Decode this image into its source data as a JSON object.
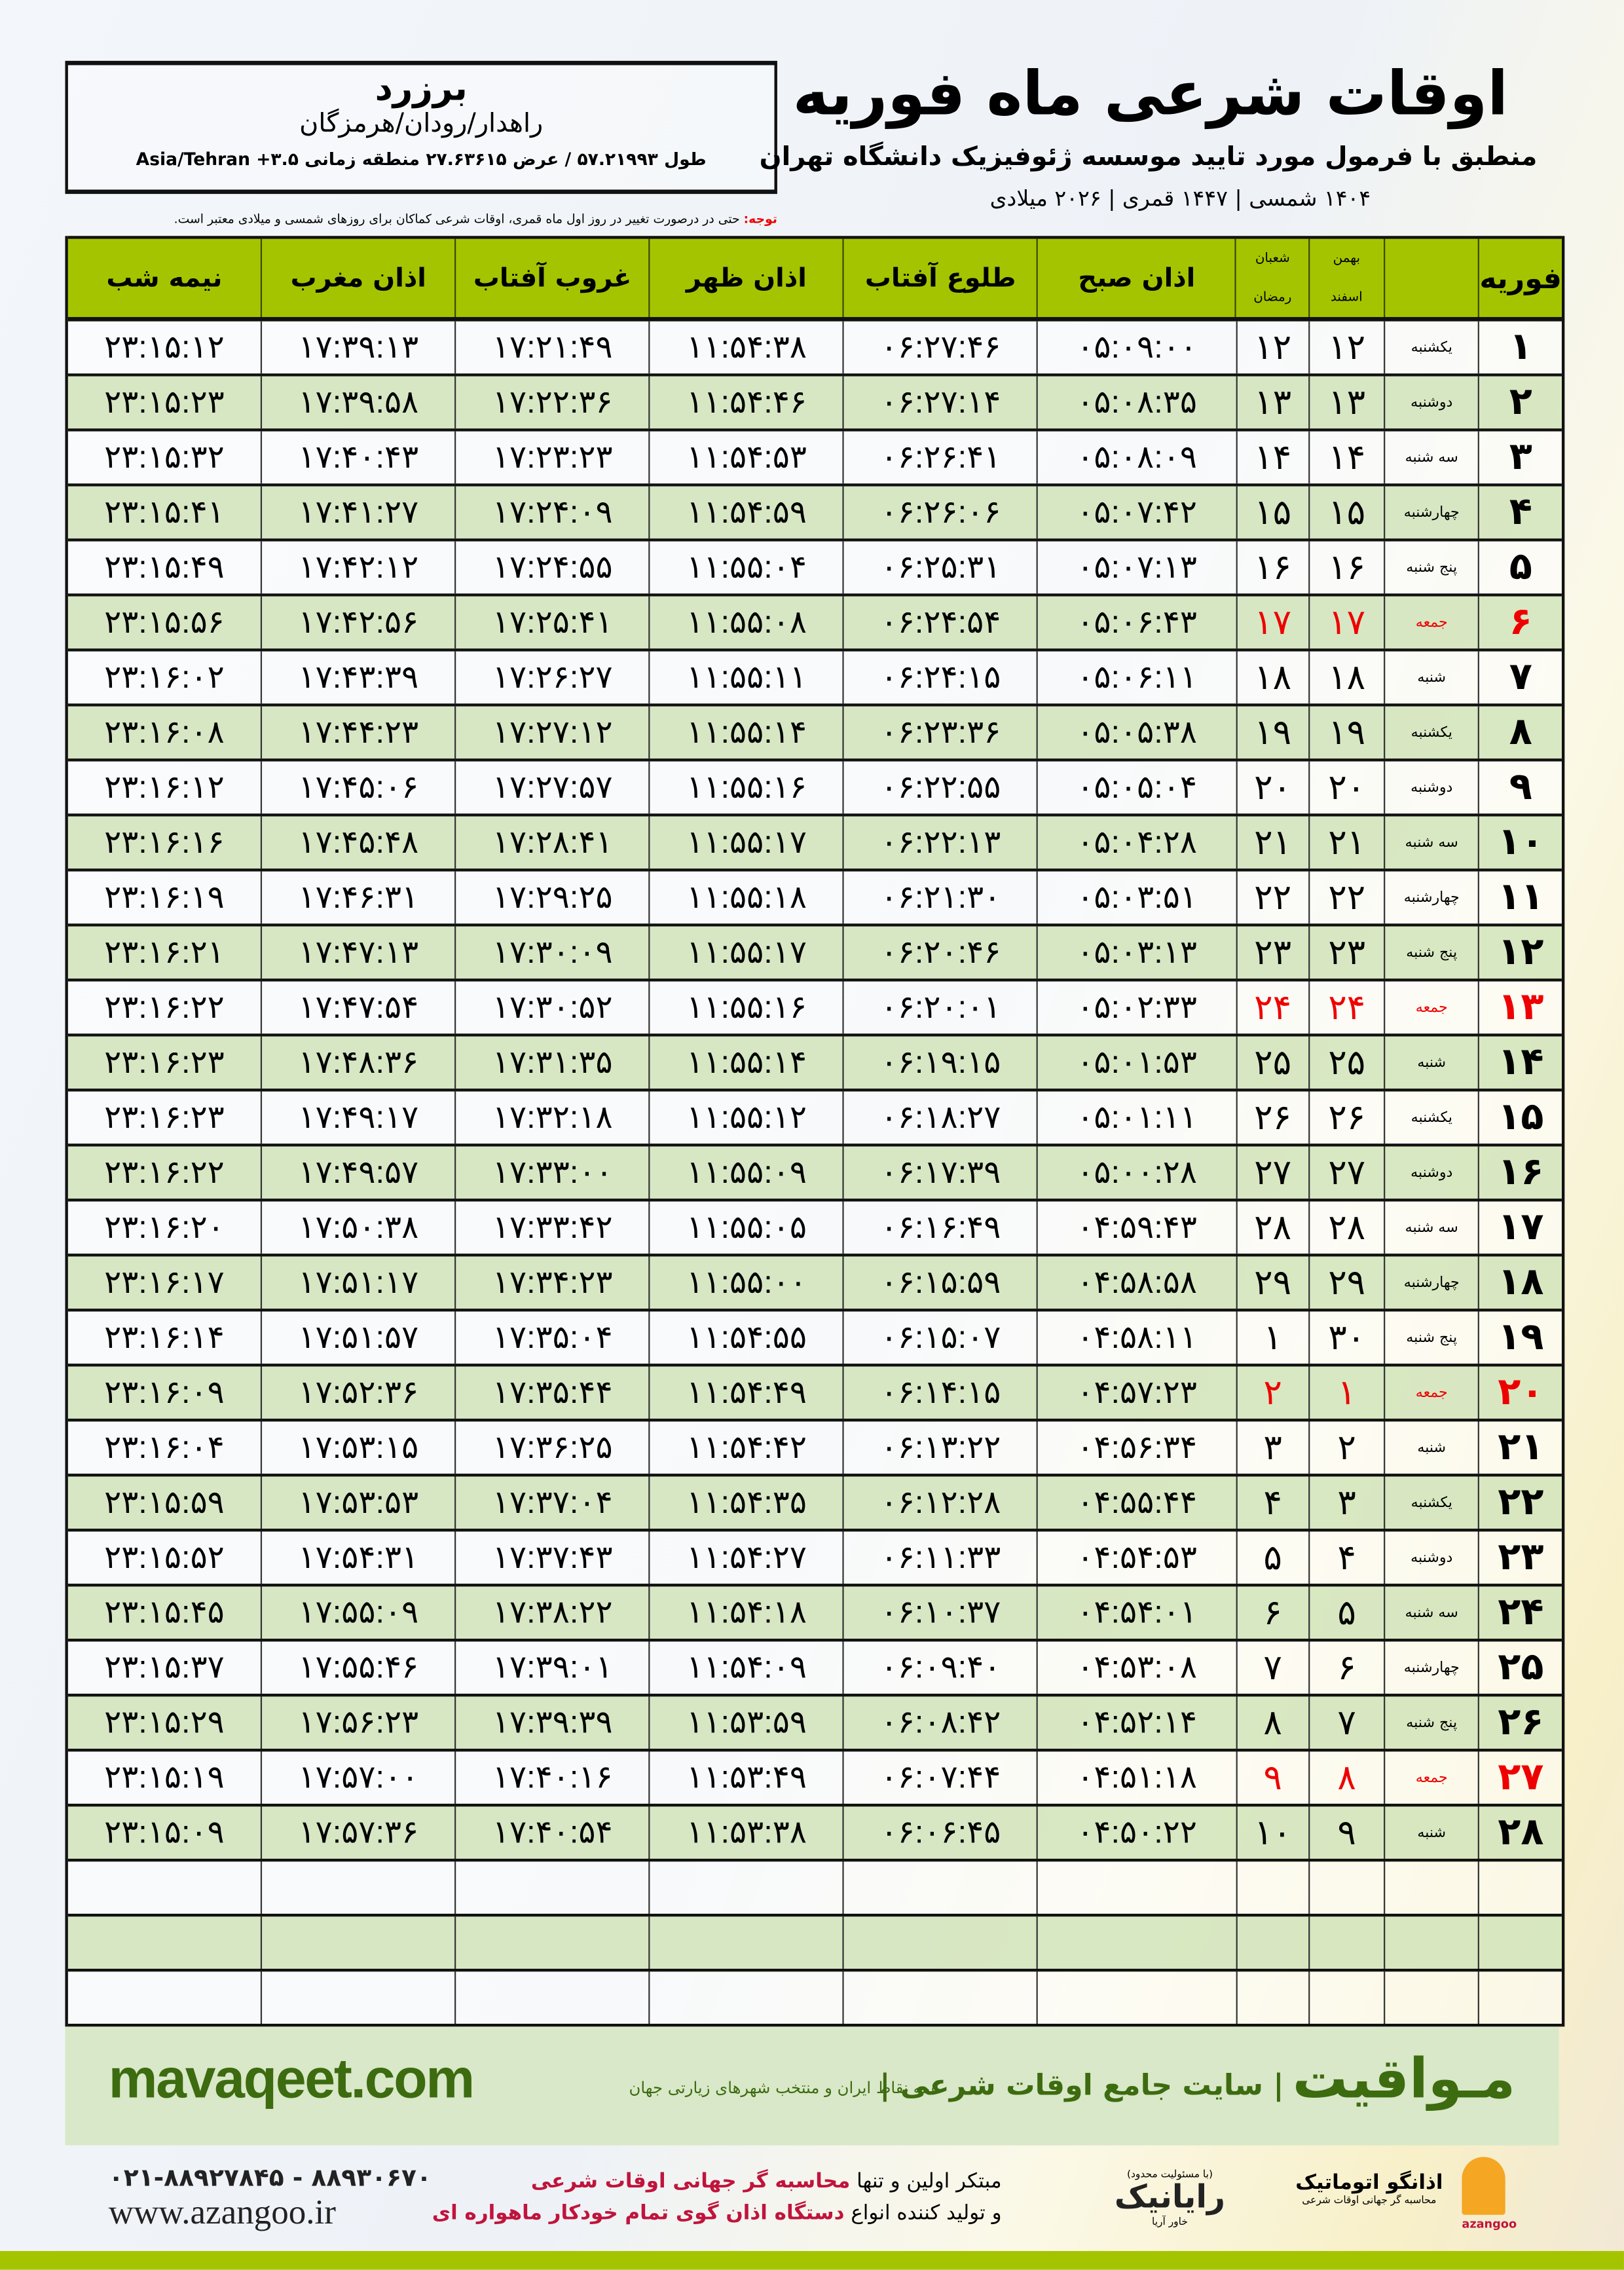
{
  "location": {
    "city": "برزرد",
    "region": "راهدار/رودان/هرمزگان",
    "coords": "طول ۵۷.۲۱۹۹۳ / عرض ۲۷.۶۳۶۱۵ منطقه زمانی ۳.۵+ Asia/Tehran"
  },
  "header": {
    "title": "اوقات شرعی ماه فوریه",
    "subtitle": "منطبق با فرمول مورد تایید موسسه ژئوفیزیک دانشگاه تهران",
    "dateline": "۱۴۰۴ شمسی | ۱۴۴۷ قمری | ۲۰۲۶ میلادی"
  },
  "note": {
    "label": "توجه:",
    "text": " حتی در درصورت تغییر در روز اول ماه قمری، اوقات شرعی کماکان برای روزهای شمسی و میلادی معتبر است."
  },
  "colors": {
    "header_green": "#a5c400",
    "row_green": "#d4e6be",
    "friday_red": "#e00000",
    "brand_green": "#3d6b10"
  },
  "table": {
    "columns": {
      "month": "فوریه",
      "sh1": "بهمن",
      "sh2": "اسفند",
      "q1": "شعبان",
      "q2": "رمضان",
      "sobh": "اذان صبح",
      "tolu": "طلوع آفتاب",
      "zohr": "اذان ظهر",
      "ghorub": "غروب آفتاب",
      "maghreb": "اذان مغرب",
      "nime": "نیمه شب"
    },
    "rows": [
      {
        "d": "۱",
        "wd": "یکشنبه",
        "s": "۱۲",
        "q": "۱۲",
        "t": [
          "۰۵:۰۹:۰۰",
          "۰۶:۲۷:۴۶",
          "۱۱:۵۴:۳۸",
          "۱۷:۲۱:۴۹",
          "۱۷:۳۹:۱۳",
          "۲۳:۱۵:۱۲"
        ]
      },
      {
        "d": "۲",
        "wd": "دوشنبه",
        "s": "۱۳",
        "q": "۱۳",
        "t": [
          "۰۵:۰۸:۳۵",
          "۰۶:۲۷:۱۴",
          "۱۱:۵۴:۴۶",
          "۱۷:۲۲:۳۶",
          "۱۷:۳۹:۵۸",
          "۲۳:۱۵:۲۳"
        ]
      },
      {
        "d": "۳",
        "wd": "سه شنبه",
        "s": "۱۴",
        "q": "۱۴",
        "t": [
          "۰۵:۰۸:۰۹",
          "۰۶:۲۶:۴۱",
          "۱۱:۵۴:۵۳",
          "۱۷:۲۳:۲۳",
          "۱۷:۴۰:۴۳",
          "۲۳:۱۵:۳۲"
        ]
      },
      {
        "d": "۴",
        "wd": "چهارشنبه",
        "s": "۱۵",
        "q": "۱۵",
        "t": [
          "۰۵:۰۷:۴۲",
          "۰۶:۲۶:۰۶",
          "۱۱:۵۴:۵۹",
          "۱۷:۲۴:۰۹",
          "۱۷:۴۱:۲۷",
          "۲۳:۱۵:۴۱"
        ]
      },
      {
        "d": "۵",
        "wd": "پنج شنبه",
        "s": "۱۶",
        "q": "۱۶",
        "t": [
          "۰۵:۰۷:۱۳",
          "۰۶:۲۵:۳۱",
          "۱۱:۵۵:۰۴",
          "۱۷:۲۴:۵۵",
          "۱۷:۴۲:۱۲",
          "۲۳:۱۵:۴۹"
        ]
      },
      {
        "d": "۶",
        "wd": "جمعه",
        "s": "۱۷",
        "q": "۱۷",
        "friday": true,
        "t": [
          "۰۵:۰۶:۴۳",
          "۰۶:۲۴:۵۴",
          "۱۱:۵۵:۰۸",
          "۱۷:۲۵:۴۱",
          "۱۷:۴۲:۵۶",
          "۲۳:۱۵:۵۶"
        ]
      },
      {
        "d": "۷",
        "wd": "شنبه",
        "s": "۱۸",
        "q": "۱۸",
        "t": [
          "۰۵:۰۶:۱۱",
          "۰۶:۲۴:۱۵",
          "۱۱:۵۵:۱۱",
          "۱۷:۲۶:۲۷",
          "۱۷:۴۳:۳۹",
          "۲۳:۱۶:۰۲"
        ]
      },
      {
        "d": "۸",
        "wd": "یکشنبه",
        "s": "۱۹",
        "q": "۱۹",
        "t": [
          "۰۵:۰۵:۳۸",
          "۰۶:۲۳:۳۶",
          "۱۱:۵۵:۱۴",
          "۱۷:۲۷:۱۲",
          "۱۷:۴۴:۲۳",
          "۲۳:۱۶:۰۸"
        ]
      },
      {
        "d": "۹",
        "wd": "دوشنبه",
        "s": "۲۰",
        "q": "۲۰",
        "t": [
          "۰۵:۰۵:۰۴",
          "۰۶:۲۲:۵۵",
          "۱۱:۵۵:۱۶",
          "۱۷:۲۷:۵۷",
          "۱۷:۴۵:۰۶",
          "۲۳:۱۶:۱۲"
        ]
      },
      {
        "d": "۱۰",
        "wd": "سه شنبه",
        "s": "۲۱",
        "q": "۲۱",
        "t": [
          "۰۵:۰۴:۲۸",
          "۰۶:۲۲:۱۳",
          "۱۱:۵۵:۱۷",
          "۱۷:۲۸:۴۱",
          "۱۷:۴۵:۴۸",
          "۲۳:۱۶:۱۶"
        ]
      },
      {
        "d": "۱۱",
        "wd": "چهارشنبه",
        "s": "۲۲",
        "q": "۲۲",
        "t": [
          "۰۵:۰۳:۵۱",
          "۰۶:۲۱:۳۰",
          "۱۱:۵۵:۱۸",
          "۱۷:۲۹:۲۵",
          "۱۷:۴۶:۳۱",
          "۲۳:۱۶:۱۹"
        ]
      },
      {
        "d": "۱۲",
        "wd": "پنج شنبه",
        "s": "۲۳",
        "q": "۲۳",
        "t": [
          "۰۵:۰۳:۱۳",
          "۰۶:۲۰:۴۶",
          "۱۱:۵۵:۱۷",
          "۱۷:۳۰:۰۹",
          "۱۷:۴۷:۱۳",
          "۲۳:۱۶:۲۱"
        ]
      },
      {
        "d": "۱۳",
        "wd": "جمعه",
        "s": "۲۴",
        "q": "۲۴",
        "friday": true,
        "t": [
          "۰۵:۰۲:۳۳",
          "۰۶:۲۰:۰۱",
          "۱۱:۵۵:۱۶",
          "۱۷:۳۰:۵۲",
          "۱۷:۴۷:۵۴",
          "۲۳:۱۶:۲۲"
        ]
      },
      {
        "d": "۱۴",
        "wd": "شنبه",
        "s": "۲۵",
        "q": "۲۵",
        "t": [
          "۰۵:۰۱:۵۳",
          "۰۶:۱۹:۱۵",
          "۱۱:۵۵:۱۴",
          "۱۷:۳۱:۳۵",
          "۱۷:۴۸:۳۶",
          "۲۳:۱۶:۲۳"
        ]
      },
      {
        "d": "۱۵",
        "wd": "یکشنبه",
        "s": "۲۶",
        "q": "۲۶",
        "t": [
          "۰۵:۰۱:۱۱",
          "۰۶:۱۸:۲۷",
          "۱۱:۵۵:۱۲",
          "۱۷:۳۲:۱۸",
          "۱۷:۴۹:۱۷",
          "۲۳:۱۶:۲۳"
        ]
      },
      {
        "d": "۱۶",
        "wd": "دوشنبه",
        "s": "۲۷",
        "q": "۲۷",
        "t": [
          "۰۵:۰۰:۲۸",
          "۰۶:۱۷:۳۹",
          "۱۱:۵۵:۰۹",
          "۱۷:۳۳:۰۰",
          "۱۷:۴۹:۵۷",
          "۲۳:۱۶:۲۲"
        ]
      },
      {
        "d": "۱۷",
        "wd": "سه شنبه",
        "s": "۲۸",
        "q": "۲۸",
        "t": [
          "۰۴:۵۹:۴۳",
          "۰۶:۱۶:۴۹",
          "۱۱:۵۵:۰۵",
          "۱۷:۳۳:۴۲",
          "۱۷:۵۰:۳۸",
          "۲۳:۱۶:۲۰"
        ]
      },
      {
        "d": "۱۸",
        "wd": "چهارشنبه",
        "s": "۲۹",
        "q": "۲۹",
        "t": [
          "۰۴:۵۸:۵۸",
          "۰۶:۱۵:۵۹",
          "۱۱:۵۵:۰۰",
          "۱۷:۳۴:۲۳",
          "۱۷:۵۱:۱۷",
          "۲۳:۱۶:۱۷"
        ]
      },
      {
        "d": "۱۹",
        "wd": "پنج شنبه",
        "s": "۳۰",
        "q": "۱",
        "t": [
          "۰۴:۵۸:۱۱",
          "۰۶:۱۵:۰۷",
          "۱۱:۵۴:۵۵",
          "۱۷:۳۵:۰۴",
          "۱۷:۵۱:۵۷",
          "۲۳:۱۶:۱۴"
        ]
      },
      {
        "d": "۲۰",
        "wd": "جمعه",
        "s": "۱",
        "q": "۲",
        "friday": true,
        "t": [
          "۰۴:۵۷:۲۳",
          "۰۶:۱۴:۱۵",
          "۱۱:۵۴:۴۹",
          "۱۷:۳۵:۴۴",
          "۱۷:۵۲:۳۶",
          "۲۳:۱۶:۰۹"
        ]
      },
      {
        "d": "۲۱",
        "wd": "شنبه",
        "s": "۲",
        "q": "۳",
        "t": [
          "۰۴:۵۶:۳۴",
          "۰۶:۱۳:۲۲",
          "۱۱:۵۴:۴۲",
          "۱۷:۳۶:۲۵",
          "۱۷:۵۳:۱۵",
          "۲۳:۱۶:۰۴"
        ]
      },
      {
        "d": "۲۲",
        "wd": "یکشنبه",
        "s": "۳",
        "q": "۴",
        "t": [
          "۰۴:۵۵:۴۴",
          "۰۶:۱۲:۲۸",
          "۱۱:۵۴:۳۵",
          "۱۷:۳۷:۰۴",
          "۱۷:۵۳:۵۳",
          "۲۳:۱۵:۵۹"
        ]
      },
      {
        "d": "۲۳",
        "wd": "دوشنبه",
        "s": "۴",
        "q": "۵",
        "t": [
          "۰۴:۵۴:۵۳",
          "۰۶:۱۱:۳۳",
          "۱۱:۵۴:۲۷",
          "۱۷:۳۷:۴۳",
          "۱۷:۵۴:۳۱",
          "۲۳:۱۵:۵۲"
        ]
      },
      {
        "d": "۲۴",
        "wd": "سه شنبه",
        "s": "۵",
        "q": "۶",
        "t": [
          "۰۴:۵۴:۰۱",
          "۰۶:۱۰:۳۷",
          "۱۱:۵۴:۱۸",
          "۱۷:۳۸:۲۲",
          "۱۷:۵۵:۰۹",
          "۲۳:۱۵:۴۵"
        ]
      },
      {
        "d": "۲۵",
        "wd": "چهارشنبه",
        "s": "۶",
        "q": "۷",
        "t": [
          "۰۴:۵۳:۰۸",
          "۰۶:۰۹:۴۰",
          "۱۱:۵۴:۰۹",
          "۱۷:۳۹:۰۱",
          "۱۷:۵۵:۴۶",
          "۲۳:۱۵:۳۷"
        ]
      },
      {
        "d": "۲۶",
        "wd": "پنج شنبه",
        "s": "۷",
        "q": "۸",
        "t": [
          "۰۴:۵۲:۱۴",
          "۰۶:۰۸:۴۲",
          "۱۱:۵۳:۵۹",
          "۱۷:۳۹:۳۹",
          "۱۷:۵۶:۲۳",
          "۲۳:۱۵:۲۹"
        ]
      },
      {
        "d": "۲۷",
        "wd": "جمعه",
        "s": "۸",
        "q": "۹",
        "friday": true,
        "t": [
          "۰۴:۵۱:۱۸",
          "۰۶:۰۷:۴۴",
          "۱۱:۵۳:۴۹",
          "۱۷:۴۰:۱۶",
          "۱۷:۵۷:۰۰",
          "۲۳:۱۵:۱۹"
        ]
      },
      {
        "d": "۲۸",
        "wd": "شنبه",
        "s": "۹",
        "q": "۱۰",
        "t": [
          "۰۴:۵۰:۲۲",
          "۰۶:۰۶:۴۵",
          "۱۱:۵۳:۳۸",
          "۱۷:۴۰:۵۴",
          "۱۷:۵۷:۳۶",
          "۲۳:۱۵:۰۹"
        ]
      }
    ]
  },
  "footer": {
    "brand": "مـواقیت",
    "slogan": "| سایت جامع اوقات شرعی |",
    "slogan2": "همه نقاط ایران و منتخب شهرهای زیارتی جهان",
    "site": "mavaqeet.com"
  },
  "ads": {
    "phones": "۰۲۱-۸۸۹۲۷۸۴۵ - ۸۸۹۳۰۶۷۰",
    "www": "www.azangoo.ir",
    "line1a": "مبتکر اولین و تنها ",
    "line1b": "محاسبه گر جهانی اوقات شرعی",
    "line2a": "و تولید کننده انواع ",
    "line2b": "دستگاه اذان گوی تمام خودکار ماهواره ای",
    "rayanik": "رایانیک",
    "rayanik_sub": "خاور آریا",
    "rayanik_note": "(با مسئولیت محدود)",
    "azangoo": "اذانگو اتوماتیک",
    "azangoo_sub": "محاسبه گر جهانی اوقات شرعی",
    "azangoo_en": "azangoo"
  }
}
